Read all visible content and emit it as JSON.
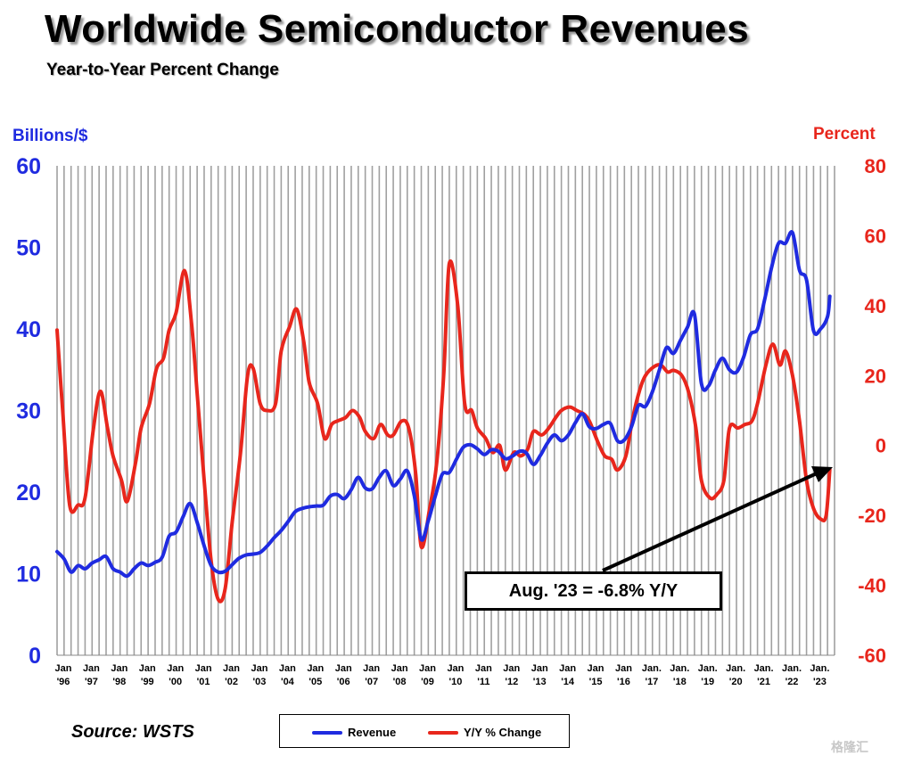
{
  "title": "Worldwide Semiconductor Revenues",
  "subtitle": "Year-to-Year Percent Change",
  "source": "Source: WSTS",
  "watermark": "格隆汇",
  "annotation": "Aug. '23 = -6.8% Y/Y",
  "colors": {
    "revenue": "#1f2be0",
    "yoy": "#e8261c",
    "grid": "#a0a0a0"
  },
  "chart_data": {
    "type": "line",
    "title": "Worldwide Semiconductor Revenues",
    "subtitle": "Year-to-Year Percent Change",
    "ylabel_left": "Billions/$",
    "ylabel_right": "Percent",
    "ylim_left": [
      0,
      60
    ],
    "ylim_right": [
      -60,
      80
    ],
    "yticks_left": [
      "0",
      "10",
      "20",
      "30",
      "40",
      "50",
      "60"
    ],
    "yticks_right": [
      "-60",
      "-40",
      "-20",
      "0",
      "20",
      "40",
      "60",
      "80"
    ],
    "grid": "vertical",
    "x_ticks": [
      {
        "year": 1996,
        "l1": "Jan",
        "l2": "'96"
      },
      {
        "year": 1997,
        "l1": "Jan",
        "l2": "'97"
      },
      {
        "year": 1998,
        "l1": "Jan",
        "l2": "'98"
      },
      {
        "year": 1999,
        "l1": "Jan",
        "l2": "'99"
      },
      {
        "year": 2000,
        "l1": "Jan",
        "l2": "'00"
      },
      {
        "year": 2001,
        "l1": "Jan",
        "l2": "'01"
      },
      {
        "year": 2002,
        "l1": "Jan",
        "l2": "'02"
      },
      {
        "year": 2003,
        "l1": "Jan",
        "l2": "'03"
      },
      {
        "year": 2004,
        "l1": "Jan",
        "l2": "'04"
      },
      {
        "year": 2005,
        "l1": "Jan",
        "l2": "'05"
      },
      {
        "year": 2006,
        "l1": "Jan",
        "l2": "'06"
      },
      {
        "year": 2007,
        "l1": "Jan",
        "l2": "'07"
      },
      {
        "year": 2008,
        "l1": "Jan",
        "l2": "'08"
      },
      {
        "year": 2009,
        "l1": "Jan",
        "l2": "'09"
      },
      {
        "year": 2010,
        "l1": "Jan",
        "l2": "'10"
      },
      {
        "year": 2011,
        "l1": "Jan",
        "l2": "'11"
      },
      {
        "year": 2012,
        "l1": "Jan",
        "l2": "'12"
      },
      {
        "year": 2013,
        "l1": "Jan",
        "l2": "'13"
      },
      {
        "year": 2014,
        "l1": "Jan",
        "l2": "'14"
      },
      {
        "year": 2015,
        "l1": "Jan",
        "l2": "'15"
      },
      {
        "year": 2016,
        "l1": "Jan",
        "l2": "'16"
      },
      {
        "year": 2017,
        "l1": "Jan.",
        "l2": "'17"
      },
      {
        "year": 2018,
        "l1": "Jan.",
        "l2": "'18"
      },
      {
        "year": 2019,
        "l1": "Jan.",
        "l2": "'19"
      },
      {
        "year": 2020,
        "l1": "Jan.",
        "l2": "'20"
      },
      {
        "year": 2021,
        "l1": "Jan.",
        "l2": "'21"
      },
      {
        "year": 2022,
        "l1": "Jan.",
        "l2": "'22"
      },
      {
        "year": 2023,
        "l1": "Jan.",
        "l2": "'23"
      }
    ],
    "x_range": [
      1996.0,
      2023.75
    ],
    "legend": [
      "Revenue",
      "Y/Y % Change"
    ],
    "legend_position": "bottom",
    "series": [
      {
        "name": "Revenue",
        "axis": "left",
        "points": [
          [
            1996.0,
            12.7
          ],
          [
            1996.25,
            11.8
          ],
          [
            1996.5,
            10.2
          ],
          [
            1996.75,
            11.0
          ],
          [
            1997.0,
            10.6
          ],
          [
            1997.25,
            11.3
          ],
          [
            1997.5,
            11.7
          ],
          [
            1997.75,
            12.1
          ],
          [
            1998.0,
            10.6
          ],
          [
            1998.25,
            10.2
          ],
          [
            1998.5,
            9.7
          ],
          [
            1998.75,
            10.6
          ],
          [
            1999.0,
            11.3
          ],
          [
            1999.25,
            11.0
          ],
          [
            1999.5,
            11.4
          ],
          [
            1999.75,
            12.0
          ],
          [
            2000.0,
            14.6
          ],
          [
            2000.25,
            15.1
          ],
          [
            2000.5,
            17.0
          ],
          [
            2000.75,
            18.6
          ],
          [
            2001.0,
            16.3
          ],
          [
            2001.25,
            13.4
          ],
          [
            2001.5,
            11.0
          ],
          [
            2001.75,
            10.2
          ],
          [
            2002.0,
            10.3
          ],
          [
            2002.25,
            11.1
          ],
          [
            2002.5,
            11.9
          ],
          [
            2002.75,
            12.3
          ],
          [
            2003.0,
            12.4
          ],
          [
            2003.25,
            12.6
          ],
          [
            2003.5,
            13.4
          ],
          [
            2003.75,
            14.4
          ],
          [
            2004.0,
            15.3
          ],
          [
            2004.25,
            16.4
          ],
          [
            2004.5,
            17.6
          ],
          [
            2004.75,
            18.0
          ],
          [
            2005.0,
            18.2
          ],
          [
            2005.25,
            18.3
          ],
          [
            2005.5,
            18.4
          ],
          [
            2005.75,
            19.5
          ],
          [
            2006.0,
            19.7
          ],
          [
            2006.25,
            19.2
          ],
          [
            2006.5,
            20.3
          ],
          [
            2006.75,
            21.8
          ],
          [
            2007.0,
            20.5
          ],
          [
            2007.25,
            20.4
          ],
          [
            2007.5,
            21.8
          ],
          [
            2007.75,
            22.6
          ],
          [
            2008.0,
            20.8
          ],
          [
            2008.25,
            21.6
          ],
          [
            2008.5,
            22.6
          ],
          [
            2008.75,
            19.6
          ],
          [
            2009.0,
            14.2
          ],
          [
            2009.25,
            16.5
          ],
          [
            2009.5,
            19.5
          ],
          [
            2009.75,
            22.2
          ],
          [
            2010.0,
            22.4
          ],
          [
            2010.25,
            24.0
          ],
          [
            2010.5,
            25.5
          ],
          [
            2010.75,
            25.8
          ],
          [
            2011.0,
            25.3
          ],
          [
            2011.25,
            24.6
          ],
          [
            2011.5,
            25.2
          ],
          [
            2011.75,
            25.0
          ],
          [
            2012.0,
            24.1
          ],
          [
            2012.25,
            24.4
          ],
          [
            2012.5,
            25.0
          ],
          [
            2012.75,
            24.8
          ],
          [
            2013.0,
            23.4
          ],
          [
            2013.25,
            24.5
          ],
          [
            2013.5,
            26.0
          ],
          [
            2013.75,
            27.0
          ],
          [
            2014.0,
            26.3
          ],
          [
            2014.25,
            27.0
          ],
          [
            2014.5,
            28.5
          ],
          [
            2014.75,
            29.6
          ],
          [
            2015.0,
            28.0
          ],
          [
            2015.25,
            27.8
          ],
          [
            2015.5,
            28.3
          ],
          [
            2015.75,
            28.4
          ],
          [
            2016.0,
            26.3
          ],
          [
            2016.25,
            26.4
          ],
          [
            2016.5,
            28.0
          ],
          [
            2016.75,
            30.6
          ],
          [
            2017.0,
            30.5
          ],
          [
            2017.25,
            32.3
          ],
          [
            2017.5,
            35.0
          ],
          [
            2017.75,
            37.7
          ],
          [
            2018.0,
            37.0
          ],
          [
            2018.25,
            38.6
          ],
          [
            2018.5,
            40.2
          ],
          [
            2018.75,
            41.8
          ],
          [
            2019.0,
            33.3
          ],
          [
            2019.25,
            33.0
          ],
          [
            2019.5,
            35.0
          ],
          [
            2019.75,
            36.4
          ],
          [
            2020.0,
            35.0
          ],
          [
            2020.25,
            34.7
          ],
          [
            2020.5,
            36.5
          ],
          [
            2020.75,
            39.3
          ],
          [
            2021.0,
            40.0
          ],
          [
            2021.25,
            43.5
          ],
          [
            2021.5,
            47.5
          ],
          [
            2021.75,
            50.5
          ],
          [
            2022.0,
            50.5
          ],
          [
            2022.25,
            51.8
          ],
          [
            2022.5,
            47.2
          ],
          [
            2022.75,
            46.0
          ],
          [
            2023.0,
            39.8
          ],
          [
            2023.25,
            40.0
          ],
          [
            2023.5,
            41.5
          ],
          [
            2023.58,
            44.0
          ]
        ]
      },
      {
        "name": "Y/Y % Change",
        "axis": "right",
        "points": [
          [
            1996.0,
            33.0
          ],
          [
            1996.2,
            10.0
          ],
          [
            1996.45,
            -17.0
          ],
          [
            1996.75,
            -17.0
          ],
          [
            1997.0,
            -15.0
          ],
          [
            1997.3,
            5.0
          ],
          [
            1997.55,
            15.5
          ],
          [
            1997.8,
            5.0
          ],
          [
            1998.0,
            -3.0
          ],
          [
            1998.3,
            -10.0
          ],
          [
            1998.5,
            -16.0
          ],
          [
            1998.8,
            -5.0
          ],
          [
            1999.0,
            5.0
          ],
          [
            1999.3,
            12.0
          ],
          [
            1999.55,
            22.0
          ],
          [
            1999.8,
            25.0
          ],
          [
            2000.0,
            33.0
          ],
          [
            2000.25,
            38.0
          ],
          [
            2000.55,
            50.0
          ],
          [
            2000.8,
            35.0
          ],
          [
            2001.0,
            15.0
          ],
          [
            2001.25,
            -10.0
          ],
          [
            2001.5,
            -33.0
          ],
          [
            2001.75,
            -44.0
          ],
          [
            2002.0,
            -41.0
          ],
          [
            2002.25,
            -22.0
          ],
          [
            2002.55,
            -2.0
          ],
          [
            2002.8,
            20.0
          ],
          [
            2003.0,
            22.0
          ],
          [
            2003.25,
            12.0
          ],
          [
            2003.5,
            10.0
          ],
          [
            2003.8,
            12.0
          ],
          [
            2004.0,
            27.0
          ],
          [
            2004.3,
            34.0
          ],
          [
            2004.55,
            39.0
          ],
          [
            2004.8,
            30.0
          ],
          [
            2005.0,
            18.0
          ],
          [
            2005.3,
            12.0
          ],
          [
            2005.55,
            2.0
          ],
          [
            2005.8,
            6.0
          ],
          [
            2006.0,
            7.0
          ],
          [
            2006.3,
            8.0
          ],
          [
            2006.55,
            10.0
          ],
          [
            2006.8,
            8.0
          ],
          [
            2007.0,
            4.0
          ],
          [
            2007.3,
            2.0
          ],
          [
            2007.55,
            6.0
          ],
          [
            2007.8,
            3.0
          ],
          [
            2008.0,
            3.0
          ],
          [
            2008.3,
            7.0
          ],
          [
            2008.55,
            5.0
          ],
          [
            2008.8,
            -8.0
          ],
          [
            2009.0,
            -29.0
          ],
          [
            2009.3,
            -18.0
          ],
          [
            2009.55,
            -5.0
          ],
          [
            2009.8,
            20.0
          ],
          [
            2010.0,
            52.0
          ],
          [
            2010.3,
            40.0
          ],
          [
            2010.55,
            12.0
          ],
          [
            2010.8,
            10.0
          ],
          [
            2011.0,
            5.0
          ],
          [
            2011.3,
            2.0
          ],
          [
            2011.55,
            -2.0
          ],
          [
            2011.8,
            0.0
          ],
          [
            2012.0,
            -7.0
          ],
          [
            2012.3,
            -2.0
          ],
          [
            2012.55,
            -3.0
          ],
          [
            2012.8,
            -1.0
          ],
          [
            2013.0,
            4.0
          ],
          [
            2013.3,
            3.0
          ],
          [
            2013.55,
            5.0
          ],
          [
            2013.8,
            8.0
          ],
          [
            2014.0,
            10.0
          ],
          [
            2014.3,
            11.0
          ],
          [
            2014.55,
            10.0
          ],
          [
            2014.8,
            9.0
          ],
          [
            2015.0,
            7.0
          ],
          [
            2015.3,
            1.0
          ],
          [
            2015.55,
            -3.0
          ],
          [
            2015.8,
            -4.0
          ],
          [
            2016.0,
            -7.0
          ],
          [
            2016.3,
            -3.0
          ],
          [
            2016.55,
            8.0
          ],
          [
            2016.8,
            16.0
          ],
          [
            2017.0,
            20.0
          ],
          [
            2017.3,
            22.5
          ],
          [
            2017.55,
            23.0
          ],
          [
            2017.8,
            21.0
          ],
          [
            2018.0,
            21.5
          ],
          [
            2018.3,
            20.0
          ],
          [
            2018.55,
            15.0
          ],
          [
            2018.8,
            5.0
          ],
          [
            2019.0,
            -10.0
          ],
          [
            2019.3,
            -15.0
          ],
          [
            2019.55,
            -14.0
          ],
          [
            2019.8,
            -10.0
          ],
          [
            2020.0,
            5.0
          ],
          [
            2020.3,
            5.0
          ],
          [
            2020.55,
            6.0
          ],
          [
            2020.8,
            7.0
          ],
          [
            2021.0,
            12.0
          ],
          [
            2021.3,
            23.0
          ],
          [
            2021.55,
            29.0
          ],
          [
            2021.8,
            23.0
          ],
          [
            2022.0,
            27.0
          ],
          [
            2022.25,
            20.0
          ],
          [
            2022.5,
            7.0
          ],
          [
            2022.75,
            -10.0
          ],
          [
            2023.0,
            -18.0
          ],
          [
            2023.25,
            -21.0
          ],
          [
            2023.45,
            -20.0
          ],
          [
            2023.58,
            -6.8
          ]
        ]
      }
    ]
  }
}
